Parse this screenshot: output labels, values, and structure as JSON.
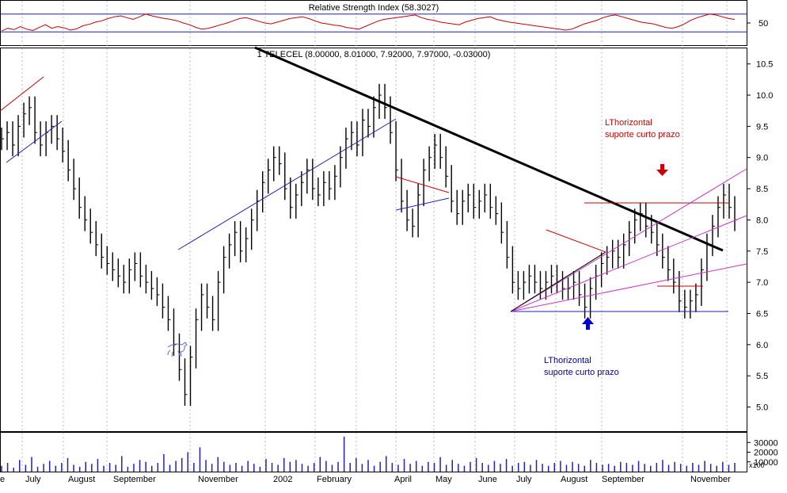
{
  "chart_data": [
    {
      "type": "line",
      "panel": "rsi",
      "title": "Relative Strength Index (58.3027)",
      "yticks": [
        50
      ],
      "ylim": [
        0,
        100
      ],
      "guide_levels": [
        70,
        30
      ],
      "series": [
        {
          "values": [
            32,
            38,
            35,
            42,
            36,
            33,
            40,
            46,
            38,
            42,
            39,
            34,
            37,
            44,
            47,
            52,
            55,
            60,
            64,
            66,
            62,
            58,
            64,
            70,
            66,
            63,
            60,
            58,
            55,
            50,
            46,
            40,
            36,
            38,
            42,
            46,
            50,
            55,
            60,
            62,
            58,
            54,
            50,
            48,
            52,
            56,
            60,
            62,
            64,
            60,
            55,
            50,
            48,
            45,
            44,
            40,
            38,
            36,
            42,
            48,
            54,
            58,
            60,
            62,
            64,
            66,
            68,
            62,
            58,
            56,
            52,
            50,
            48,
            46,
            52,
            56,
            60,
            62,
            64,
            58,
            55,
            52,
            50,
            48,
            46,
            44,
            42,
            40,
            38,
            36,
            34,
            36,
            42,
            48,
            52,
            56,
            62,
            66,
            68,
            64,
            60,
            56,
            52,
            50,
            48,
            44,
            40,
            38,
            42,
            48,
            56,
            62,
            66,
            70,
            68,
            64,
            60,
            58
          ]
        }
      ]
    },
    {
      "type": "bar",
      "panel": "price",
      "title": "1 TELECEL (8.00000, 8.01000, 7.92000, 7.97000, -0.03000)",
      "yticks": [
        5.0,
        5.5,
        6.0,
        6.5,
        7.0,
        7.5,
        8.0,
        8.5,
        9.0,
        9.5,
        10.0,
        10.5
      ],
      "ylim": [
        4.6,
        10.75
      ],
      "months": [
        "e",
        "July",
        "August",
        "September",
        "November",
        "2002",
        "February",
        "April",
        "May",
        "June",
        "July",
        "August",
        "September",
        "November"
      ],
      "series": [
        {
          "values": [
            9.3,
            9.4,
            9.2,
            9.5,
            9.7,
            9.8,
            9.4,
            9.2,
            9.4,
            9.5,
            9.3,
            9.1,
            8.8,
            8.5,
            8.2,
            8.0,
            7.8,
            7.6,
            7.4,
            7.3,
            7.2,
            7.1,
            7.0,
            7.2,
            7.3,
            7.1,
            7.0,
            6.9,
            6.8,
            6.6,
            6.4,
            6.0,
            5.6,
            5.2,
            5.8,
            6.4,
            6.8,
            6.6,
            6.4,
            7.0,
            7.4,
            7.6,
            7.8,
            7.5,
            7.7,
            8.0,
            8.3,
            8.6,
            8.8,
            9.0,
            8.9,
            8.5,
            8.2,
            8.4,
            8.6,
            8.8,
            8.5,
            8.4,
            8.6,
            8.5,
            8.7,
            9.0,
            9.3,
            9.4,
            9.2,
            9.6,
            9.5,
            9.8,
            10.0,
            9.8,
            9.4,
            8.8,
            8.3,
            8.0,
            7.9,
            8.4,
            8.8,
            9.0,
            9.2,
            9.0,
            8.7,
            8.3,
            8.1,
            8.3,
            8.4,
            8.2,
            8.3,
            8.4,
            8.2,
            8.1,
            7.8,
            7.4,
            7.0,
            6.9,
            7.0,
            7.1,
            7.0,
            6.9,
            7.0,
            7.1,
            7.0,
            6.9,
            6.9,
            7.0,
            6.8,
            6.6,
            6.9,
            7.1,
            7.3,
            7.4,
            7.5,
            7.4,
            7.6,
            7.8,
            8.0,
            8.1,
            7.9,
            7.8,
            7.6,
            7.4,
            7.2,
            7.0,
            6.7,
            6.6,
            6.7,
            6.8,
            7.2,
            7.6,
            7.9,
            8.2,
            8.4,
            8.2,
            8.0
          ]
        }
      ],
      "annotations": [
        {
          "text": "LThorizontal",
          "color": "#cc0000"
        },
        {
          "text": "suporte curto prazo",
          "color": "#cc0000"
        },
        {
          "text": "LThorizontal",
          "color": "#000099"
        },
        {
          "text": "suporte curto prazo",
          "color": "#000099"
        }
      ]
    },
    {
      "type": "bar",
      "panel": "volume",
      "yticks": [
        30000,
        20000,
        10000
      ],
      "yunit": "x100",
      "ylim": [
        0,
        40000
      ],
      "series": [
        {
          "values": [
            6000,
            9000,
            4000,
            12000,
            7000,
            15000,
            5000,
            8000,
            11000,
            6000,
            9000,
            14000,
            7000,
            5000,
            10000,
            8000,
            13000,
            6000,
            9000,
            7000,
            16000,
            5000,
            8000,
            12000,
            10000,
            6000,
            9000,
            18000,
            7000,
            11000,
            14000,
            20000,
            9000,
            25000,
            12000,
            8000,
            15000,
            10000,
            7000,
            9000,
            6000,
            11000,
            8000,
            5000,
            13000,
            9000,
            7000,
            14000,
            10000,
            12000,
            8000,
            6000,
            9000,
            15000,
            11000,
            7000,
            10000,
            36000,
            9000,
            14000,
            8000,
            12000,
            6000,
            10000,
            16000,
            9000,
            7000,
            13000,
            8000,
            11000,
            6000,
            10000,
            9000,
            15000,
            7000,
            12000,
            8000,
            6000,
            10000,
            14000,
            9000,
            7000,
            11000,
            8000,
            13000,
            6000,
            9000,
            10000,
            7000,
            12000,
            8000,
            6000,
            9000,
            11000,
            7000,
            10000,
            8000,
            6000,
            12000,
            9000,
            7000,
            8000,
            6000,
            10000,
            9000,
            7000,
            11000,
            8000,
            6000,
            9000,
            12000,
            7000,
            10000,
            8000,
            6000,
            9000,
            7000,
            11000,
            8000,
            6000,
            10000,
            7000,
            9000
          ]
        }
      ]
    }
  ]
}
